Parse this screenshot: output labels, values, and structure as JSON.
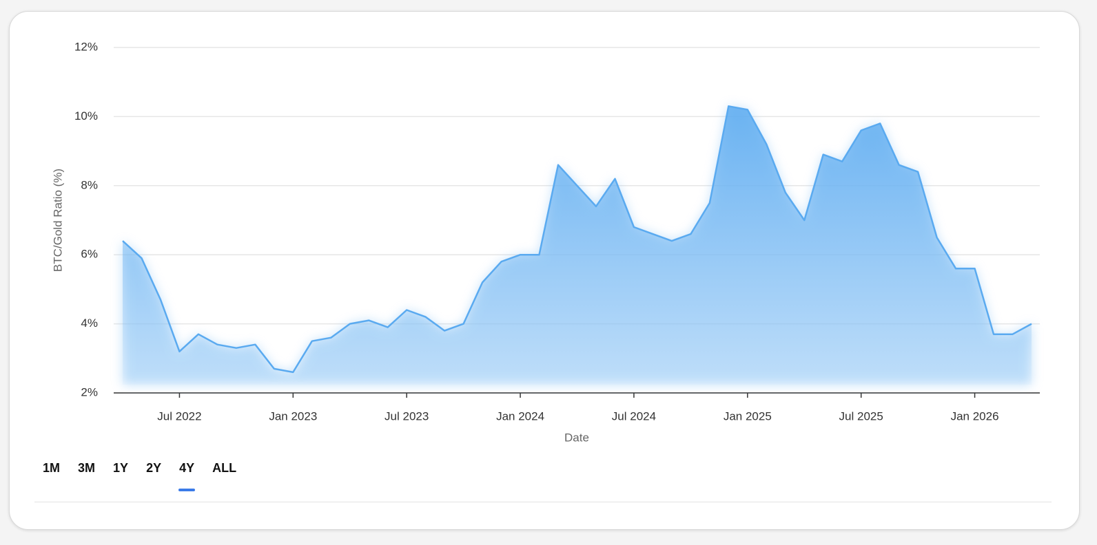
{
  "chart_data": {
    "type": "area",
    "ylabel": "BTC/Gold Ratio (%)",
    "xlabel": "Date",
    "color": "#5aaaf0",
    "grid": true,
    "x": [
      "2022-04",
      "2022-05",
      "2022-06",
      "2022-07",
      "2022-08",
      "2022-09",
      "2022-10",
      "2022-11",
      "2022-12",
      "2023-01",
      "2023-02",
      "2023-03",
      "2023-04",
      "2023-05",
      "2023-06",
      "2023-07",
      "2023-08",
      "2023-09",
      "2023-10",
      "2023-11",
      "2023-12",
      "2024-01",
      "2024-02",
      "2024-03",
      "2024-04",
      "2024-05",
      "2024-06",
      "2024-07",
      "2024-08",
      "2024-09",
      "2024-10",
      "2024-11",
      "2024-12",
      "2025-01",
      "2025-02",
      "2025-03",
      "2025-04",
      "2025-05",
      "2025-06",
      "2025-07",
      "2025-08",
      "2025-09",
      "2025-10",
      "2025-11",
      "2025-12",
      "2026-01",
      "2026-02",
      "2026-03",
      "2026-04"
    ],
    "values": [
      6.4,
      5.9,
      4.7,
      3.2,
      3.7,
      3.4,
      3.3,
      3.4,
      2.7,
      2.6,
      3.5,
      3.6,
      4.0,
      4.1,
      3.9,
      4.4,
      4.2,
      3.8,
      4.0,
      5.2,
      5.8,
      6.0,
      6.0,
      8.6,
      8.0,
      7.4,
      8.2,
      6.8,
      6.6,
      6.4,
      6.6,
      7.5,
      10.3,
      10.2,
      9.2,
      7.8,
      7.0,
      8.9,
      8.7,
      9.6,
      9.8,
      8.6,
      8.4,
      6.5,
      5.6,
      5.6,
      3.7,
      3.7,
      4.0
    ],
    "xlim": [
      "2022-04",
      "2026-04"
    ],
    "xticks": [
      {
        "value": "2022-07",
        "label": "Jul 2022"
      },
      {
        "value": "2023-01",
        "label": "Jan 2023"
      },
      {
        "value": "2023-07",
        "label": "Jul 2023"
      },
      {
        "value": "2024-01",
        "label": "Jan 2024"
      },
      {
        "value": "2024-07",
        "label": "Jul 2024"
      },
      {
        "value": "2025-01",
        "label": "Jan 2025"
      },
      {
        "value": "2025-07",
        "label": "Jul 2025"
      },
      {
        "value": "2026-01",
        "label": "Jan 2026"
      }
    ],
    "ylim": [
      2,
      12
    ],
    "yticks": [
      {
        "value": 2,
        "label": "2%"
      },
      {
        "value": 4,
        "label": "4%"
      },
      {
        "value": 6,
        "label": "6%"
      },
      {
        "value": 8,
        "label": "8%"
      },
      {
        "value": 10,
        "label": "10%"
      },
      {
        "value": 12,
        "label": "12%"
      }
    ]
  },
  "range_buttons": [
    "1M",
    "3M",
    "1Y",
    "2Y",
    "4Y",
    "ALL"
  ],
  "selected_index": 4
}
